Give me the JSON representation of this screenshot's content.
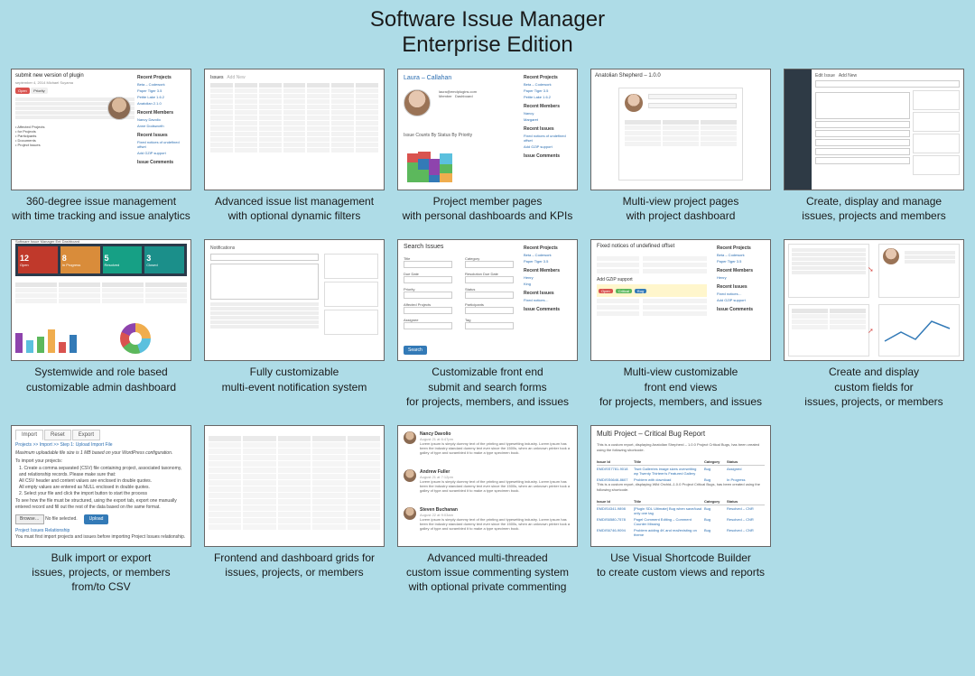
{
  "title": {
    "line1": "Software Issue Manager",
    "line2": "Enterprise Edition"
  },
  "sidebar_labels": {
    "recent_projects": "Recent Projects",
    "recent_members": "Recent Members",
    "recent_issues": "Recent Issues",
    "issue_comments": "Issue Comments"
  },
  "cards": [
    {
      "caption": "360-degree issue management\nwith time tracking and issue analytics",
      "thumb": {
        "title": "submit new version of plugin",
        "meta": "september 4, 2014   Michael Suyama",
        "btn_red": "Open",
        "btn_gray": "Priority",
        "projects": [
          "Beta – Codework",
          "Paper Tiger 3.5",
          "Petite Lake 1.6.2",
          "Anatolian 2.1.0"
        ],
        "members": [
          "Nancy Davolio",
          "Anne Dodsworth"
        ],
        "issues": [
          "Fixed notices of undefined offset",
          "Add GZiP support"
        ]
      }
    },
    {
      "caption": "Advanced issue list management\nwith optional dynamic filters",
      "thumb": {
        "rows": 12,
        "cols": 7
      }
    },
    {
      "caption": "Project member pages\nwith personal dashboards and KPIs",
      "thumb": {
        "name": "Laura – Callahan",
        "chart_label": "Issue Counts By Status By Priority",
        "bars": [
          {
            "stack": [
              {
                "c": "#5cb85c",
                "h": 22
              },
              {
                "c": "#d9534f",
                "h": 10
              }
            ]
          },
          {
            "stack": [
              {
                "c": "#5cb85c",
                "h": 14
              },
              {
                "c": "#337ab7",
                "h": 12
              },
              {
                "c": "#d9534f",
                "h": 8
              }
            ]
          },
          {
            "stack": [
              {
                "c": "#337ab7",
                "h": 8
              },
              {
                "c": "#8e44ad",
                "h": 18
              }
            ]
          },
          {
            "stack": [
              {
                "c": "#f0ad4e",
                "h": 10
              },
              {
                "c": "#5cb85c",
                "h": 10
              },
              {
                "c": "#5bc0de",
                "h": 12
              }
            ]
          }
        ]
      }
    },
    {
      "caption": "Multi-view project pages\nwith project dashboard",
      "thumb": {
        "title": "Anatolian Shepherd – 1.0.0"
      }
    },
    {
      "caption": "Create, display and manage\nissues, projects and members",
      "thumb": {}
    },
    {
      "caption": "Systemwide and role based\ncustomizable admin dashboard",
      "thumb": {
        "header": "Software Issue Manager Ent Dashboard",
        "tiles": [
          {
            "n": "12",
            "l": "Open",
            "c": "#c0392b"
          },
          {
            "n": "8",
            "l": "In Progress",
            "c": "#d98c3a"
          },
          {
            "n": "5",
            "l": "Resolved",
            "c": "#16a085"
          },
          {
            "n": "3",
            "l": "Closed",
            "c": "#1b8f8a"
          }
        ],
        "bar_colors": [
          "#8e44ad",
          "#5bc0de",
          "#5cb85c",
          "#f0ad4e",
          "#d9534f",
          "#337ab7"
        ],
        "bar_heights": [
          22,
          14,
          18,
          26,
          12,
          20
        ]
      }
    },
    {
      "caption": "Fully customizable\nmulti-event notification system",
      "thumb": {}
    },
    {
      "caption": "Customizable front end\nsubmit and search forms\nfor projects, members, and issues",
      "thumb": {
        "header": "Search Issues",
        "fields": [
          "Title",
          "Due Date",
          "Priority",
          "Affected Projects",
          "Assignee",
          "Category",
          "Resolution Due Date",
          "Status",
          "Participants",
          "Tag"
        ],
        "button": "Search"
      }
    },
    {
      "caption": "Multi-view customizable\nfront end views\nfor projects, members, and issues",
      "thumb": {
        "row_title": "Fixed notices of undefined offset",
        "hl_title": "Add GZiP support",
        "pills": [
          {
            "t": "Open",
            "c": "#d9534f"
          },
          {
            "t": "Critical",
            "c": "#5cb85c"
          },
          {
            "t": "Bug",
            "c": "#337ab7"
          }
        ]
      }
    },
    {
      "caption": "Create and display\ncustom fields for\nissues, projects, or members",
      "thumb": {}
    },
    {
      "caption": "Bulk import or export\nissues, projects, or members\nfrom/to CSV",
      "thumb": {
        "tabs": [
          "Import",
          "Reset",
          "Export"
        ],
        "crumb": "Projects >> Import >> Step 1: Upload Import File",
        "note": "Maximum uploadable file size is 1 MB based on your WordPress configuration.",
        "intro": "To import your projects:",
        "steps": [
          "1. Create a comma separated (CSV) file containing project, associated taxonomy, and relationship records. Please make sure that:",
          "   All CSV header and content values are enclosed in double quotes.",
          "   All empty values are entered as NULL enclosed in double quotes.",
          "2. Select your file and click the import button to start the process"
        ],
        "tip": "To see how the file must be structured, using the export tab, export one manually entered record and fill out the rest of the data based on the same format.",
        "browse": "Browse…",
        "nofile": "No file selected.",
        "upload": "Upload",
        "rel": "Project Issues Relationship",
        "warn": "You must first import projects and issues before importing Project Issues relationship."
      }
    },
    {
      "caption": "Frontend and dashboard grids for\nissues, projects, or members",
      "thumb": {
        "rows": 14
      }
    },
    {
      "caption": "Advanced multi-threaded\ncustom issue commenting system\nwith optional private commenting",
      "thumb": {
        "comments": [
          {
            "n": "Nancy Davolio",
            "d": "August 21 at 6:47pm"
          },
          {
            "n": "Andrew Fuller",
            "d": "August 21 at 7:12pm"
          },
          {
            "n": "Steven Buchanan",
            "d": "August 22 at 9:03am"
          }
        ]
      }
    },
    {
      "caption": "Use Visual Shortcode Builder\nto create custom views and reports",
      "thumb": {
        "title": "Multi Project – Critical Bug Report",
        "desc1": "This is a custom report, displaying Anatolian Shepherd – 1.0.0 Project Critical Bugs, has been created using the following shortcode.",
        "desc2": "This is a custom report, displaying Wild Orchid–1.0.0 Project Critical Bugs, has been created using the following shortcode.",
        "cols": [
          "Issue Id",
          "Title",
          "Category",
          "Status"
        ],
        "rows1": [
          {
            "id": "EMDISS7781-9018",
            "t": "Twnt Gallerries image sizes overwriting wp Twenty Thirteen's Featured Gallery",
            "c": "Bug",
            "s": "Assigned"
          },
          {
            "id": "EMDISS6646-8607",
            "t": "Problem with download",
            "c": "Bug",
            "s": "In Progress"
          }
        ],
        "rows2": [
          {
            "id": "EMDIS4341-9898",
            "t": "[Plugin SDL Ultimate] Bug when save/load only one tag",
            "c": "Bug",
            "s": "Resolved – CNR"
          },
          {
            "id": "EMDIS6580-7578",
            "t": "Pagel Comment Editing – Comment Counter Missing",
            "c": "Bug",
            "s": "Resolved – CNR"
          },
          {
            "id": "EMDIS6746-9094",
            "t": "Problem adding 4K and real/existing on theme",
            "c": "Bug",
            "s": "Resolved – CNR"
          }
        ]
      }
    }
  ]
}
